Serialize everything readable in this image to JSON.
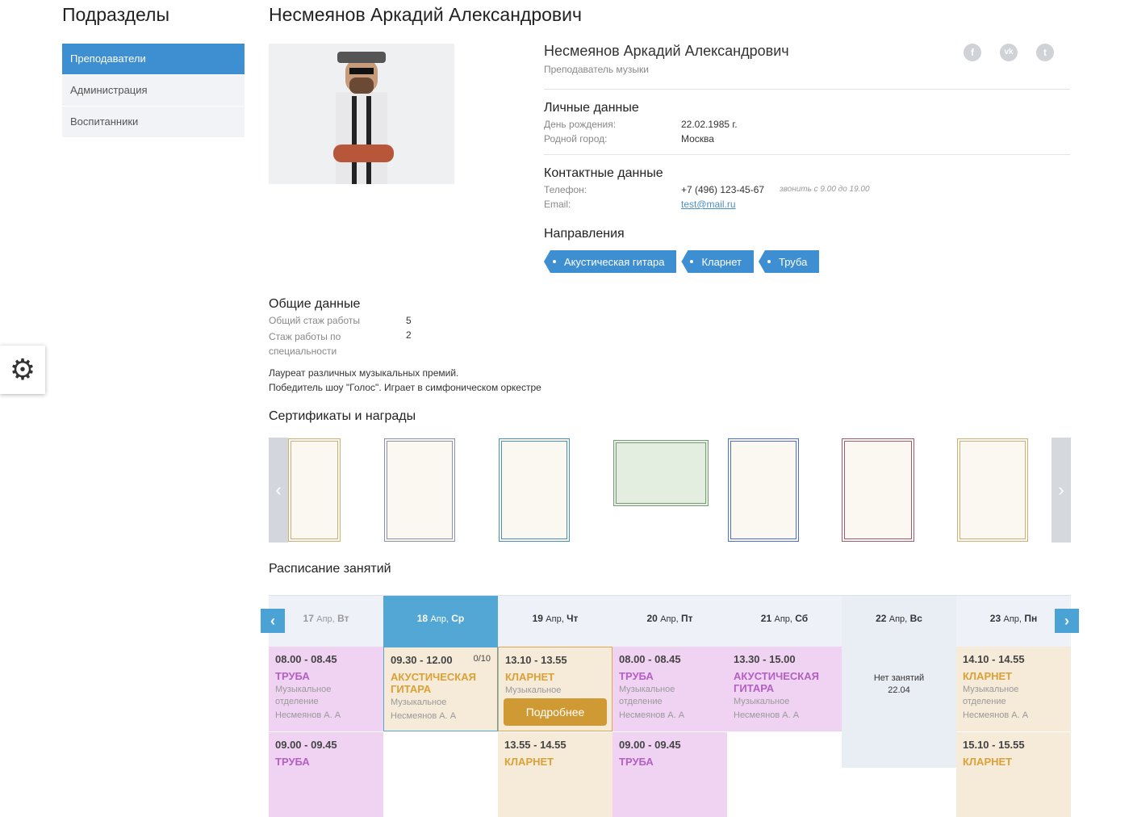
{
  "sidebar": {
    "title": "Подразделы",
    "items": [
      {
        "label": "Преподаватели",
        "active": true
      },
      {
        "label": "Администрация"
      },
      {
        "label": "Воспитанники"
      }
    ]
  },
  "page_title": "Несмеянов Аркадий Александрович",
  "profile": {
    "name": "Несмеянов Аркадий Александрович",
    "role": "Преподаватель музыки",
    "social": [
      "facebook-icon",
      "vk-icon",
      "twitter-icon"
    ],
    "personal": {
      "title": "Личные данные",
      "birthday_label": "День рождения:",
      "birthday": "22.02.1985 г.",
      "city_label": "Родной город:",
      "city": "Москва"
    },
    "contacts": {
      "title": "Контактные данные",
      "phone_label": "Телефон:",
      "phone": "+7 (496) 123-45-67",
      "phone_note": "звонить с 9.00 до 19.00",
      "email_label": "Email:",
      "email": "test@mail.ru"
    },
    "directions": {
      "title": "Направления",
      "tags": [
        "Акустическая гитара",
        "Кларнет",
        "Труба"
      ]
    }
  },
  "general": {
    "title": "Общие данные",
    "exp_label": "Общий стаж работы",
    "exp": "5",
    "spec_label": "Стаж работы по специальности",
    "spec": "2",
    "bio1": "Лауреат различных музыкальных премий.",
    "bio2": "Победитель шоу \"Голос\". Играет в симфоническом оркестре"
  },
  "certificates": {
    "title": "Сертификаты и награды",
    "count": 7
  },
  "schedule": {
    "title": "Расписание занятий",
    "no_lessons": "Нет занятий",
    "days": [
      {
        "day": "17",
        "mon": "Апр,",
        "wd": "Вт",
        "lessons": [
          {
            "time": "08.00 - 08.45",
            "name": "ТРУБА",
            "dept": "Музыкальное отделение",
            "teacher": "Несмеянов А. А",
            "kind": "pink"
          },
          {
            "time": "09.00 - 09.45",
            "name": "ТРУБА",
            "kind": "pink"
          }
        ]
      },
      {
        "day": "18",
        "mon": "Апр,",
        "wd": "Ср",
        "active": true,
        "lessons": [
          {
            "time": "09.30 - 12.00",
            "count": "0/10",
            "name": "АКУСТИЧЕСКАЯ ГИТАРА",
            "dept": "Музыкальное",
            "teacher": "Несмеянов А. А",
            "kind": "peach"
          }
        ]
      },
      {
        "day": "19",
        "mon": "Апр,",
        "wd": "Чт",
        "lessons": [
          {
            "time": "13.10 - 13.55",
            "name": "КЛАРНЕТ",
            "dept": "Музыкальное",
            "button": "Подробнее",
            "kind": "peach"
          },
          {
            "time": "13.55 - 14.55",
            "name": "КЛАРНЕТ",
            "kind": "peach"
          }
        ]
      },
      {
        "day": "20",
        "mon": "Апр,",
        "wd": "Пт",
        "lessons": [
          {
            "time": "08.00 - 08.45",
            "name": "ТРУБА",
            "dept": "Музыкальное отделение",
            "teacher": "Несмеянов А. А",
            "kind": "pink"
          },
          {
            "time": "09.00 - 09.45",
            "name": "ТРУБА",
            "kind": "pink"
          }
        ]
      },
      {
        "day": "21",
        "mon": "Апр,",
        "wd": "Сб",
        "lessons": [
          {
            "time": "13.30 - 15.00",
            "name": "АКУСТИЧЕСКАЯ ГИТАРА",
            "dept": "Музыкальное",
            "teacher": "Несмеянов А. А",
            "kind": "pink"
          }
        ]
      },
      {
        "day": "22",
        "mon": "Апр,",
        "wd": "Вс",
        "empty": "22.04",
        "lessons": []
      },
      {
        "day": "23",
        "mon": "Апр,",
        "wd": "Пн",
        "lessons": [
          {
            "time": "14.10 - 14.55",
            "name": "КЛАРНЕТ",
            "dept": "Музыкальное отделение",
            "teacher": "Несмеянов А. А",
            "kind": "peach"
          },
          {
            "time": "15.10 - 15.55",
            "name": "КЛАРНЕТ",
            "kind": "peach"
          }
        ]
      }
    ]
  }
}
